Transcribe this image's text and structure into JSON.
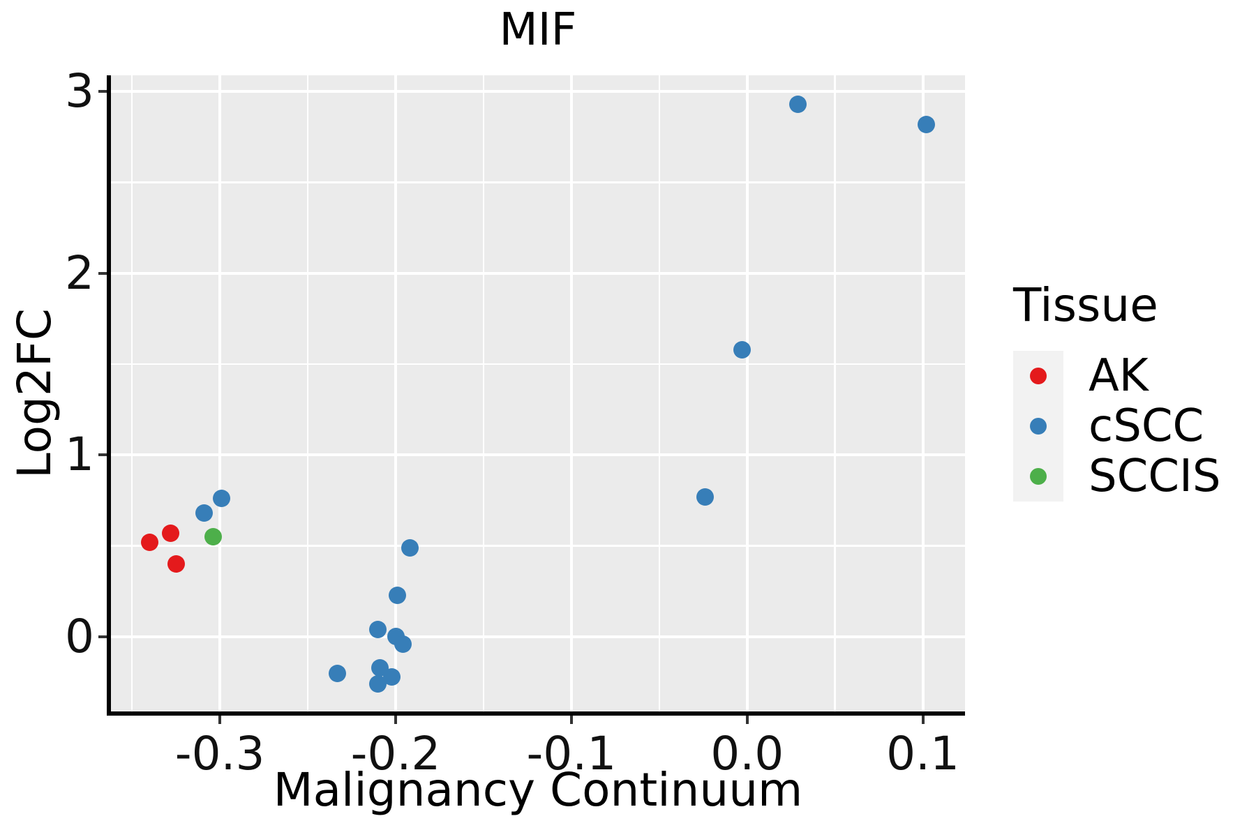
{
  "title": "MIF",
  "axes": {
    "x": {
      "label": "Malignancy Continuum",
      "tick_values": [
        -0.3,
        -0.2,
        -0.1,
        0.0,
        0.1
      ],
      "tick_labels": [
        "-0.3",
        "-0.2",
        "-0.1",
        "0.0",
        "0.1"
      ],
      "minor_tick_values": [
        -0.35,
        -0.25,
        -0.15,
        -0.05,
        0.05
      ],
      "domain": [
        -0.362,
        0.124
      ]
    },
    "y": {
      "label": "Log2FC",
      "tick_values": [
        0,
        1,
        2,
        3
      ],
      "tick_labels": [
        "0",
        "1",
        "2",
        "3"
      ],
      "minor_tick_values": [
        0.5,
        1.5,
        2.5
      ],
      "domain": [
        -0.411,
        3.09
      ]
    }
  },
  "legend": {
    "title": "Tissue",
    "items": [
      {
        "label": "AK",
        "color": "#E41A1C"
      },
      {
        "label": "cSCC",
        "color": "#377EB8"
      },
      {
        "label": "SCCIS",
        "color": "#4DAF4A"
      }
    ]
  },
  "chart_data": {
    "type": "scatter",
    "title": "MIF",
    "xlabel": "Malignancy Continuum",
    "ylabel": "Log2FC",
    "xlim": [
      -0.362,
      0.124
    ],
    "ylim": [
      -0.41,
      3.09
    ],
    "grid": true,
    "legend_position": "right",
    "series": [
      {
        "name": "AK",
        "color": "#E41A1C",
        "points": [
          [
            -0.34,
            0.52
          ],
          [
            -0.328,
            0.57
          ],
          [
            -0.325,
            0.4
          ]
        ]
      },
      {
        "name": "cSCC",
        "color": "#377EB8",
        "points": [
          [
            0.029,
            2.93
          ],
          [
            0.102,
            2.82
          ],
          [
            -0.003,
            1.58
          ],
          [
            -0.024,
            0.77
          ],
          [
            -0.299,
            0.76
          ],
          [
            -0.309,
            0.68
          ],
          [
            -0.192,
            0.49
          ],
          [
            -0.199,
            0.23
          ],
          [
            -0.21,
            0.04
          ],
          [
            -0.2,
            0.0
          ],
          [
            -0.196,
            -0.04
          ],
          [
            -0.233,
            -0.2
          ],
          [
            -0.209,
            -0.17
          ],
          [
            -0.202,
            -0.22
          ],
          [
            -0.21,
            -0.26
          ]
        ]
      },
      {
        "name": "SCCIS",
        "color": "#4DAF4A",
        "points": [
          [
            -0.304,
            0.55
          ]
        ]
      }
    ]
  },
  "colors": {
    "panel_bg": "#EBEBEB",
    "grid": "#FFFFFF",
    "axis_line": "#000000",
    "tick_mark": "#333333",
    "text": "#111111",
    "legend_key_bg": "#F2F2F2",
    "page_bg": "#FFFFFF"
  }
}
